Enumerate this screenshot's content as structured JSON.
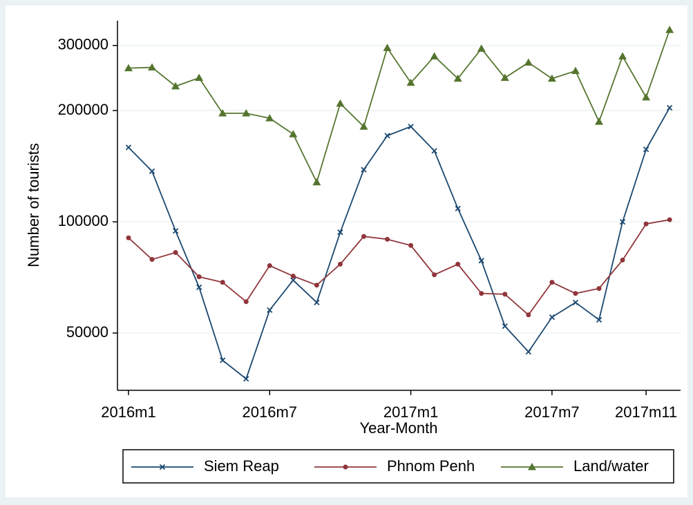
{
  "chart_data": {
    "type": "line",
    "y_label": "Number of tourists",
    "x_label": "Year-Month",
    "categories": [
      "2016m1",
      null,
      null,
      null,
      null,
      null,
      "2016m7",
      null,
      null,
      null,
      null,
      null,
      "2017m1",
      null,
      null,
      null,
      null,
      null,
      "2017m7",
      null,
      null,
      null,
      "2017m11",
      null
    ],
    "series": [
      {
        "name": "Siem Reap",
        "color": "#1a476f",
        "marker": "x",
        "values": [
          159000,
          137000,
          94500,
          66500,
          42200,
          37600,
          57700,
          69500,
          60500,
          93700,
          138400,
          171000,
          181000,
          155600,
          108600,
          78500,
          52200,
          44500,
          55200,
          60500,
          54300,
          100000,
          157000,
          203500
        ]
      },
      {
        "name": "Phnom Penh",
        "color": "#90353b",
        "marker": "circle",
        "values": [
          90500,
          79100,
          82600,
          71000,
          68600,
          60800,
          76100,
          71300,
          67400,
          76800,
          91300,
          89700,
          86300,
          71900,
          76800,
          64000,
          63700,
          56000,
          68600,
          64000,
          66000,
          78800,
          98700,
          101300
        ]
      },
      {
        "name": "Land/water",
        "color": "#55752f",
        "marker": "triangle",
        "values": [
          260500,
          261700,
          232700,
          245200,
          196600,
          196600,
          190700,
          172600,
          128000,
          208900,
          181000,
          295400,
          237800,
          280400,
          244100,
          294100,
          245200,
          269700,
          244100,
          256000,
          186600,
          280400,
          217200,
          330600
        ]
      }
    ],
    "ylim": [
      35000,
      350000
    ],
    "yticks": [
      50000,
      100000,
      200000,
      300000
    ],
    "log_scale": true,
    "grid": true,
    "legend": "bottom"
  }
}
